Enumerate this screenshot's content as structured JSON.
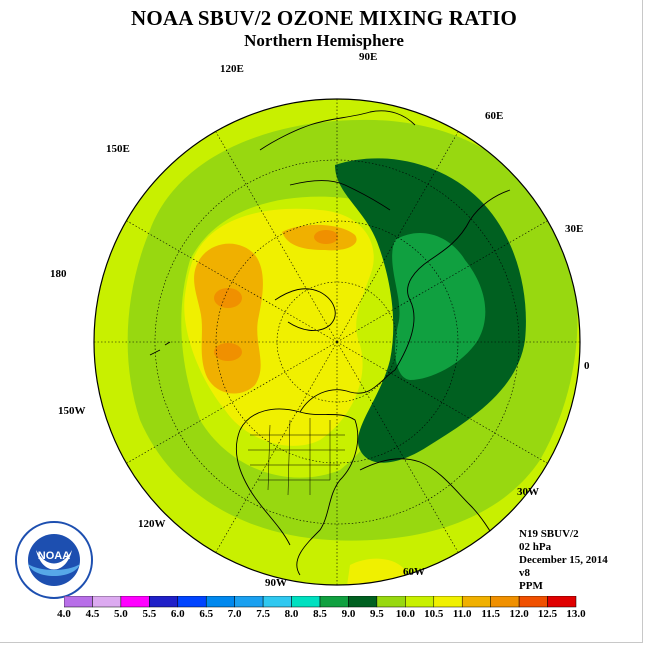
{
  "title": "NOAA SBUV/2 OZONE MIXING RATIO",
  "subtitle": "Northern Hemisphere",
  "longitude_labels": [
    "90E",
    "60E",
    "30E",
    "0",
    "30W",
    "60W",
    "90W",
    "120W",
    "150W",
    "180",
    "150E",
    "120E"
  ],
  "meta": [
    "N19 SBUV/2",
    "02 hPa",
    "December 15, 2014",
    "v8",
    "PPM"
  ],
  "colorbar": {
    "ticks": [
      "4.0",
      "4.5",
      "5.0",
      "5.5",
      "6.0",
      "6.5",
      "7.0",
      "7.5",
      "8.0",
      "8.5",
      "9.0",
      "9.5",
      "10.0",
      "10.5",
      "11.0",
      "11.5",
      "12.0",
      "12.5",
      "13.0"
    ],
    "colors": [
      "#b86fe8",
      "#dcaaf0",
      "#ff00ff",
      "#2020c8",
      "#0044ff",
      "#0088ee",
      "#1aa0f0",
      "#30c8f0",
      "#00e0c0",
      "#10a040",
      "#006020",
      "#98d810",
      "#c8f000",
      "#f0f000",
      "#f0b000",
      "#f09000",
      "#f05000",
      "#e00000",
      "#905030"
    ]
  },
  "logo_text": "NOAA",
  "map_colors": {
    "ocean_base": "#c8f000",
    "band_95": "#98d810",
    "band_105": "#f0f000",
    "band_110": "#f0b000",
    "band_115": "#f09000",
    "band_85": "#10a040",
    "band_90": "#006020"
  }
}
